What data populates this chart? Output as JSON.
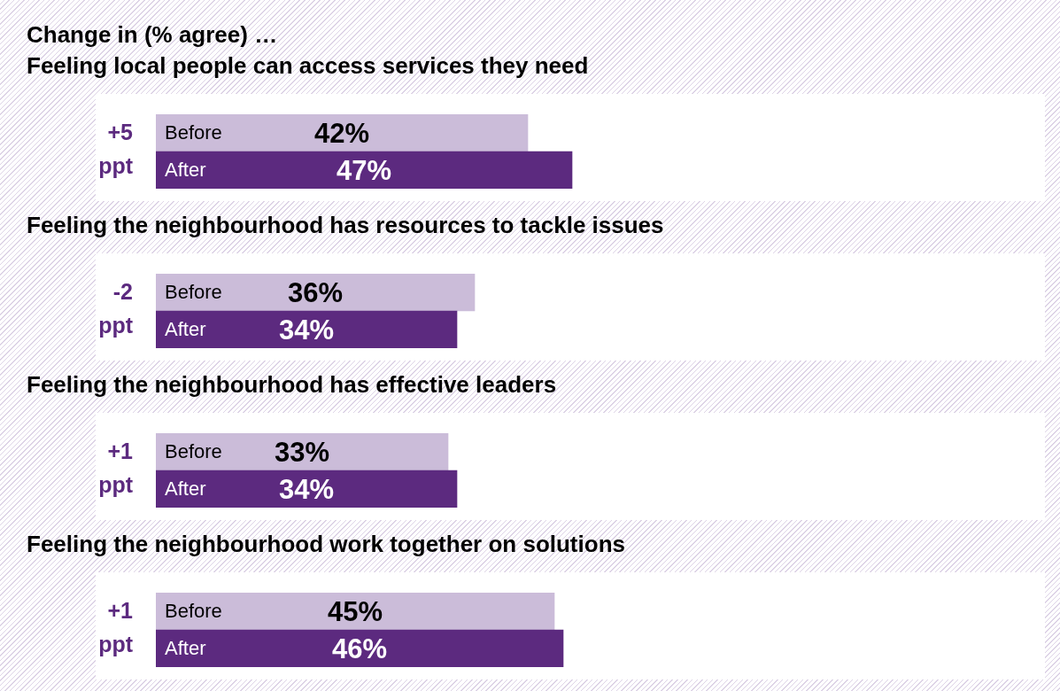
{
  "chart_data": [
    {
      "type": "bar",
      "orientation": "horizontal",
      "title": "Change in (% agree) …",
      "subtitle": "Feeling local people can access services they need",
      "categories": [
        "Before",
        "After"
      ],
      "values": [
        42,
        47
      ],
      "value_labels": [
        "42%",
        "47%"
      ],
      "colors": [
        "#cbbcd9",
        "#5c2a7f"
      ],
      "xlim": [
        0,
        100
      ],
      "tick_labels": false,
      "annotations": [
        "+5 ppt"
      ]
    },
    {
      "type": "bar",
      "orientation": "horizontal",
      "title": "Feeling the neighbourhood has resources to tackle issues",
      "categories": [
        "Before",
        "After"
      ],
      "values": [
        36,
        34
      ],
      "value_labels": [
        "36%",
        "34%"
      ],
      "colors": [
        "#cbbcd9",
        "#5c2a7f"
      ],
      "xlim": [
        0,
        100
      ],
      "tick_labels": false,
      "annotations": [
        "-2 ppt"
      ]
    },
    {
      "type": "bar",
      "orientation": "horizontal",
      "title": "Feeling the neighbourhood has effective leaders",
      "categories": [
        "Before",
        "After"
      ],
      "values": [
        33,
        34
      ],
      "value_labels": [
        "33%",
        "34%"
      ],
      "colors": [
        "#cbbcd9",
        "#5c2a7f"
      ],
      "xlim": [
        0,
        100
      ],
      "tick_labels": false,
      "annotations": [
        "+1 ppt"
      ]
    },
    {
      "type": "bar",
      "orientation": "horizontal",
      "title": "Feeling the neighbourhood work together on solutions",
      "categories": [
        "Before",
        "After"
      ],
      "values": [
        45,
        46
      ],
      "value_labels": [
        "45%",
        "46%"
      ],
      "colors": [
        "#cbbcd9",
        "#5c2a7f"
      ],
      "xlim": [
        0,
        100
      ],
      "tick_labels": false,
      "annotations": [
        "+1 ppt"
      ]
    }
  ]
}
